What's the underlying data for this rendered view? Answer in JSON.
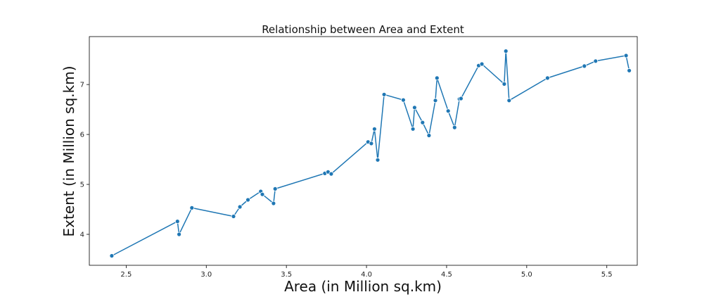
{
  "chart_data": {
    "type": "line",
    "title": "Relationship between Area and Extent",
    "xlabel": "Area (in Million sq.km)",
    "ylabel": "Extent (in Million sq.km)",
    "xlim": [
      2.27,
      5.69
    ],
    "ylim": [
      3.38,
      7.96
    ],
    "xticks": [
      2.5,
      3.0,
      3.5,
      4.0,
      4.5,
      5.0,
      5.5
    ],
    "yticks": [
      4,
      5,
      6,
      7
    ],
    "grid": false,
    "legend": "none",
    "series": [
      {
        "color": "#1f77b4",
        "marker": "circle",
        "points": [
          {
            "x": 2.41,
            "y": 3.57
          },
          {
            "x": 2.82,
            "y": 4.26
          },
          {
            "x": 2.83,
            "y": 4.0
          },
          {
            "x": 2.91,
            "y": 4.53
          },
          {
            "x": 3.17,
            "y": 4.36
          },
          {
            "x": 3.21,
            "y": 4.55
          },
          {
            "x": 3.26,
            "y": 4.69
          },
          {
            "x": 3.34,
            "y": 4.86
          },
          {
            "x": 3.35,
            "y": 4.8
          },
          {
            "x": 3.42,
            "y": 4.62
          },
          {
            "x": 3.43,
            "y": 4.91
          },
          {
            "x": 3.74,
            "y": 5.22
          },
          {
            "x": 3.76,
            "y": 5.25
          },
          {
            "x": 3.78,
            "y": 5.21
          },
          {
            "x": 4.01,
            "y": 5.85
          },
          {
            "x": 4.03,
            "y": 5.82
          },
          {
            "x": 4.05,
            "y": 6.11
          },
          {
            "x": 4.07,
            "y": 5.49
          },
          {
            "x": 4.11,
            "y": 6.8
          },
          {
            "x": 4.23,
            "y": 6.69
          },
          {
            "x": 4.29,
            "y": 6.11
          },
          {
            "x": 4.3,
            "y": 6.54
          },
          {
            "x": 4.35,
            "y": 6.24
          },
          {
            "x": 4.39,
            "y": 5.98
          },
          {
            "x": 4.43,
            "y": 6.68
          },
          {
            "x": 4.44,
            "y": 7.13
          },
          {
            "x": 4.51,
            "y": 6.47
          },
          {
            "x": 4.55,
            "y": 6.14
          },
          {
            "x": 4.58,
            "y": 6.71
          },
          {
            "x": 4.59,
            "y": 6.72
          },
          {
            "x": 4.7,
            "y": 7.38
          },
          {
            "x": 4.72,
            "y": 7.41
          },
          {
            "x": 4.86,
            "y": 7.01
          },
          {
            "x": 4.87,
            "y": 7.67
          },
          {
            "x": 4.89,
            "y": 6.68
          },
          {
            "x": 5.13,
            "y": 7.13
          },
          {
            "x": 5.36,
            "y": 7.37
          },
          {
            "x": 5.43,
            "y": 7.47
          },
          {
            "x": 5.62,
            "y": 7.58
          },
          {
            "x": 5.64,
            "y": 7.28
          }
        ]
      }
    ]
  }
}
